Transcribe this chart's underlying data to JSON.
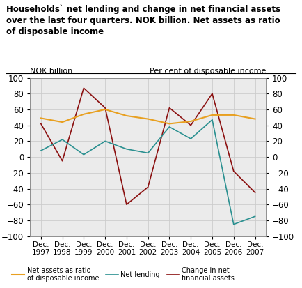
{
  "title_line1": "Households` net lending and change in net financial assets",
  "title_line2": "over the last four quarters. NOK billion. Net assets as ratio",
  "title_line3": "of disposable income",
  "xlabel_left": "NOK billion",
  "xlabel_right": "Per cent of disposable income",
  "x_labels": [
    "Dec.\n1997",
    "Dec.\n1998",
    "Dec.\n1999",
    "Dec.\n2000",
    "Dec.\n2001",
    "Dec.\n2002",
    "Dec.\n2003",
    "Dec.\n2004",
    "Dec.\n2005",
    "Dec.\n2006",
    "Dec.\n2007"
  ],
  "x_values": [
    1997,
    1998,
    1999,
    2000,
    2001,
    2002,
    2003,
    2004,
    2005,
    2006,
    2007
  ],
  "net_assets": [
    49,
    44,
    54,
    60,
    52,
    48,
    42,
    45,
    53,
    53,
    48
  ],
  "net_lending": [
    8,
    22,
    3,
    20,
    10,
    5,
    38,
    23,
    47,
    -85,
    -75
  ],
  "change_net_financial": [
    42,
    -5,
    87,
    62,
    -60,
    -38,
    62,
    40,
    80,
    -18,
    -45
  ],
  "net_assets_color": "#e8a020",
  "net_lending_color": "#2a9090",
  "change_color": "#8b1010",
  "ylim": [
    -100,
    100
  ],
  "yticks": [
    -100,
    -80,
    -60,
    -40,
    -20,
    0,
    20,
    40,
    60,
    80,
    100
  ],
  "grid_color": "#cccccc",
  "bg_color": "#ebebeb"
}
